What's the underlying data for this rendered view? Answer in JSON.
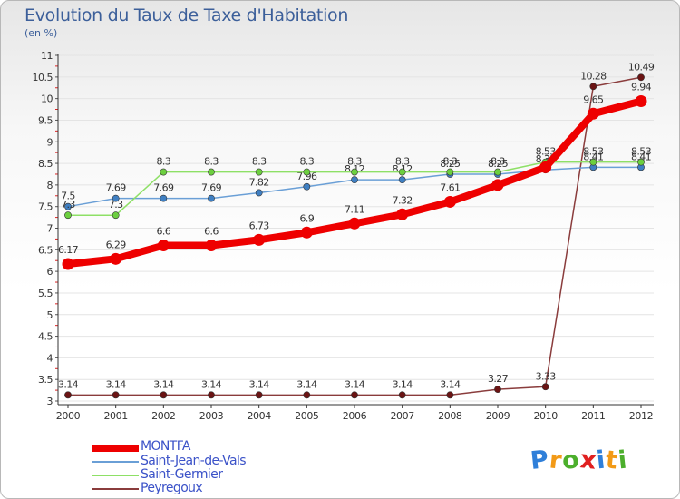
{
  "title": "Evolution du Taux de Taxe d'Habitation",
  "subtitle": "(en %)",
  "logo_text": "Proxiti",
  "chart_data": {
    "type": "line",
    "title": "Evolution du Taux de Taxe d'Habitation",
    "subtitle": "(en %)",
    "x": [
      "2000",
      "2001",
      "2002",
      "2003",
      "2004",
      "2005",
      "2006",
      "2007",
      "2008",
      "2009",
      "2010",
      "2011",
      "2012"
    ],
    "ylim": [
      3,
      11
    ],
    "yticks": [
      "3",
      "3.5",
      "4",
      "4.5",
      "5",
      "5.5",
      "6",
      "6.5",
      "7",
      "7.5",
      "8",
      "8.5",
      "9",
      "9.5",
      "10",
      "10.5",
      "11"
    ],
    "legend_position": "bottom-left",
    "series": [
      {
        "name": "MONTFA",
        "color": "#ee0000",
        "style": "thick",
        "values": [
          6.17,
          6.29,
          6.6,
          6.6,
          6.73,
          6.9,
          7.11,
          7.32,
          7.61,
          8.0,
          8.41,
          9.65,
          9.94
        ],
        "labels": [
          "6.17",
          "6.29",
          "6.6",
          "6.6",
          "6.73",
          "6.9",
          "7.11",
          "7.32",
          "7.61",
          "",
          "",
          "9.65",
          "9.94"
        ]
      },
      {
        "name": "Saint-Jean-de-Vals",
        "color": "#6a9fd6",
        "marker": "#3f7fc2",
        "style": "thin",
        "values": [
          7.5,
          7.69,
          7.69,
          7.69,
          7.82,
          7.96,
          8.12,
          8.12,
          8.25,
          8.25,
          8.35,
          8.41,
          8.41
        ],
        "labels": [
          "7.5",
          "7.69",
          "7.69",
          "7.69",
          "7.82",
          "7.96",
          "8.12",
          "8.12",
          "8.25",
          "8.25",
          "8.35",
          "8.41",
          "8.41"
        ]
      },
      {
        "name": "Saint-Germier",
        "color": "#8ee066",
        "marker": "#6ccf3f",
        "style": "thin",
        "values": [
          7.3,
          7.3,
          8.3,
          8.3,
          8.3,
          8.3,
          8.3,
          8.3,
          8.3,
          8.3,
          8.53,
          8.53,
          8.53
        ],
        "labels": [
          "7.3",
          "7.3",
          "8.3",
          "8.3",
          "8.3",
          "8.3",
          "8.3",
          "8.3",
          "8.3",
          "8.3",
          "8.53",
          "8.53",
          "8.53"
        ]
      },
      {
        "name": "Peyregoux",
        "color": "#8a3c3c",
        "marker": "#6b1414",
        "style": "thin",
        "values": [
          3.14,
          3.14,
          3.14,
          3.14,
          3.14,
          3.14,
          3.14,
          3.14,
          3.14,
          3.27,
          3.33,
          10.28,
          10.49
        ],
        "labels": [
          "3.14",
          "3.14",
          "3.14",
          "3.14",
          "3.14",
          "3.14",
          "3.14",
          "3.14",
          "3.14",
          "3.27",
          "3.33",
          "10.28",
          "10.49"
        ]
      }
    ]
  }
}
